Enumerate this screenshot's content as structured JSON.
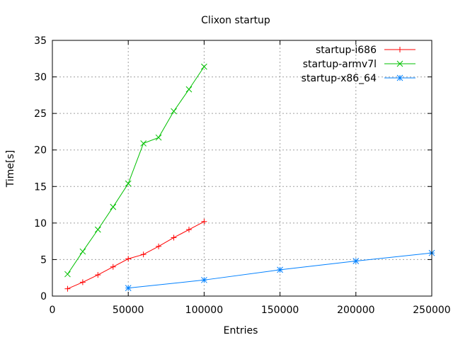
{
  "chart_data": {
    "type": "line",
    "title": "Clixon startup",
    "xlabel": "Entries",
    "ylabel": "Time[s]",
    "xlim": [
      0,
      250000
    ],
    "ylim": [
      0,
      35
    ],
    "xticks": [
      0,
      50000,
      100000,
      150000,
      200000,
      250000
    ],
    "yticks": [
      0,
      5,
      10,
      15,
      20,
      25,
      30,
      35
    ],
    "grid": true,
    "legend_position": "top-right",
    "series": [
      {
        "name": "startup-i686",
        "color": "#ff0000",
        "marker": "plus",
        "x": [
          10000,
          20000,
          30000,
          40000,
          50000,
          60000,
          70000,
          80000,
          90000,
          100000
        ],
        "y": [
          1.0,
          1.9,
          2.9,
          4.0,
          5.1,
          5.7,
          6.8,
          8.0,
          9.1,
          10.2
        ]
      },
      {
        "name": "startup-armv7l",
        "color": "#00c000",
        "marker": "cross",
        "x": [
          10000,
          20000,
          30000,
          40000,
          50000,
          60000,
          70000,
          80000,
          90000,
          100000
        ],
        "y": [
          3.0,
          6.1,
          9.1,
          12.2,
          15.4,
          20.9,
          21.7,
          25.3,
          28.3,
          31.4
        ]
      },
      {
        "name": "startup-x86_64",
        "color": "#0080ff",
        "marker": "star",
        "x": [
          50000,
          100000,
          150000,
          200000,
          250000
        ],
        "y": [
          1.1,
          2.2,
          3.6,
          4.8,
          5.9
        ]
      }
    ]
  }
}
